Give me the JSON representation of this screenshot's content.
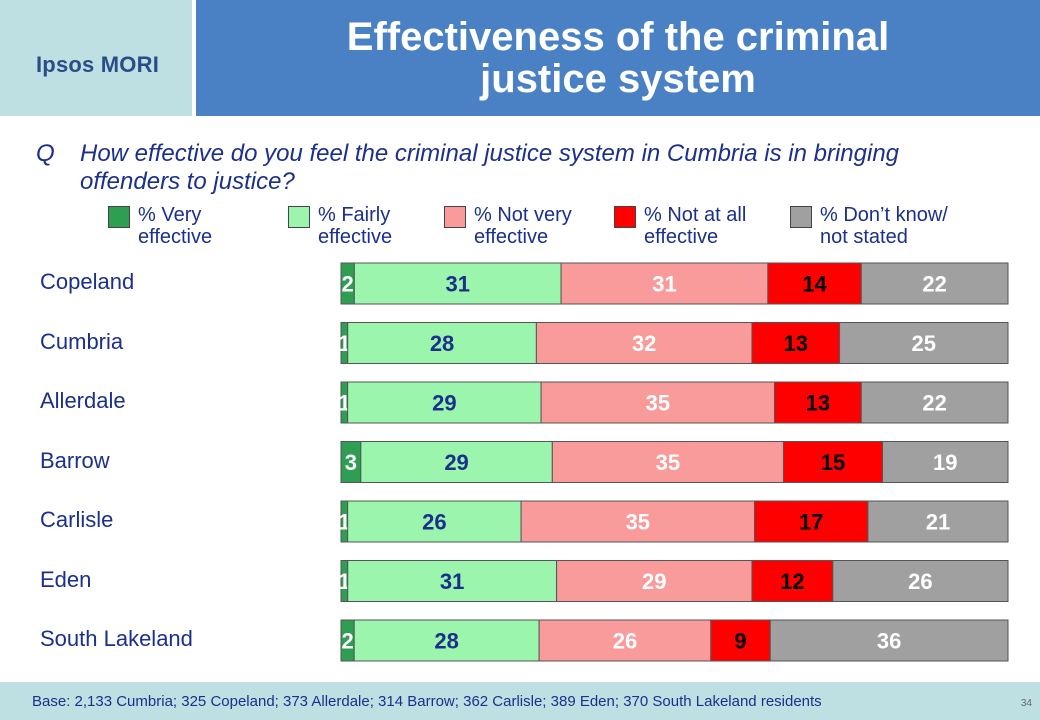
{
  "header": {
    "logo": "Ipsos MORI",
    "title": "Effectiveness of the criminal justice system"
  },
  "question": {
    "letter": "Q",
    "text": "How effective do you feel the criminal justice system in Cumbria is in bringing offenders to justice?"
  },
  "footer": {
    "base": "Base: 2,133 Cumbria; 325 Copeland; 373 Allerdale; 314 Barrow; 362 Carlisle; 389 Eden; 370 South Lakeland residents",
    "page_number": "34"
  },
  "legend": [
    {
      "label": "% Very\neffective",
      "color": "#2e9e52"
    },
    {
      "label": "% Fairly\neffective",
      "color": "#9cf5ad"
    },
    {
      "label": "% Not very\neffective",
      "color": "#fa9b9b"
    },
    {
      "label": "% Not at all\neffective",
      "color": "#fe0000"
    },
    {
      "label": "% Don’t know/\nnot stated",
      "color": "#a0a0a0"
    }
  ],
  "chart_data": {
    "type": "bar",
    "stacked": true,
    "orientation": "horizontal",
    "categories": [
      "Copeland",
      "Cumbria",
      "Allerdale",
      "Barrow",
      "Carlisle",
      "Eden",
      "South Lakeland"
    ],
    "series": [
      {
        "name": "% Very effective",
        "color": "#2e9e52",
        "values": [
          2,
          1,
          1,
          3,
          1,
          1,
          2
        ]
      },
      {
        "name": "% Fairly effective",
        "color": "#9cf5ad",
        "values": [
          31,
          28,
          29,
          29,
          26,
          31,
          28
        ]
      },
      {
        "name": "% Not very effective",
        "color": "#fa9b9b",
        "values": [
          31,
          32,
          35,
          35,
          35,
          29,
          26
        ]
      },
      {
        "name": "% Not at all effective",
        "color": "#fe0000",
        "values": [
          14,
          13,
          13,
          15,
          17,
          12,
          9
        ]
      },
      {
        "name": "% Don’t know/ not stated",
        "color": "#a0a0a0",
        "values": [
          22,
          25,
          22,
          19,
          21,
          26,
          36
        ]
      }
    ],
    "label_colors": [
      "#ffffff",
      "#1b2f8c",
      "#ffffff",
      "#000000",
      "#ffffff"
    ]
  }
}
